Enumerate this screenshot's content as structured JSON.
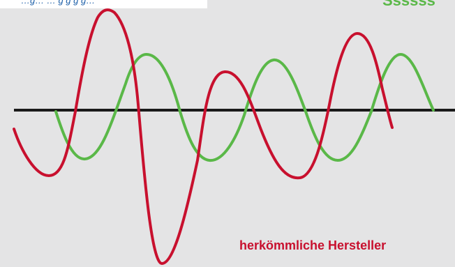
{
  "captions": {
    "top_left": "…g… … g g g g…",
    "top_right": "Ssssss",
    "bottom_right": "herkömmliche Hersteller"
  },
  "colors": {
    "background": "#e4e4e5",
    "baseline": "#1a1a1a",
    "green_wave": "#5ab848",
    "red_wave": "#c8102e",
    "caption_blue": "#1d5fa8"
  }
}
